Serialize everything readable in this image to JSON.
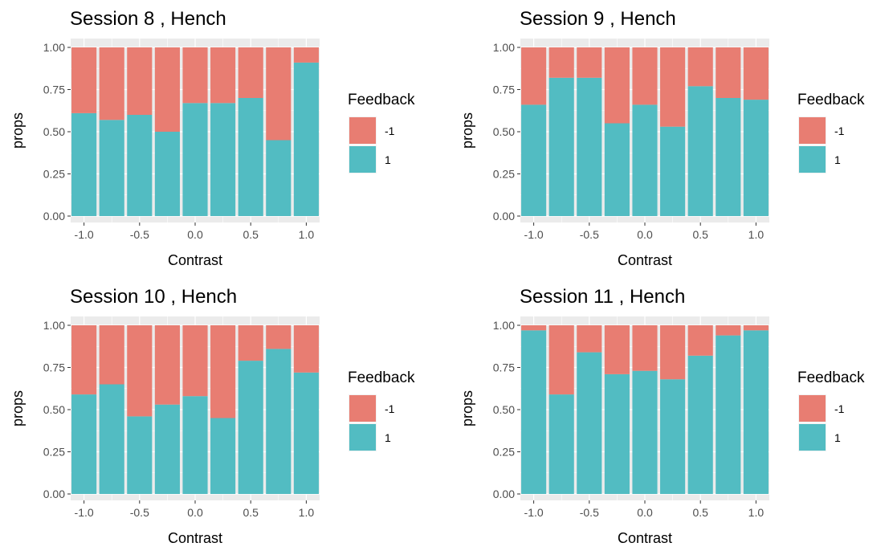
{
  "chart_data": [
    {
      "type": "bar",
      "stacked": true,
      "title": "Session  8 , Hench",
      "xlabel": "Contrast",
      "ylabel": "props",
      "ylim": [
        0,
        1
      ],
      "xlim": [
        -1.12,
        1.12
      ],
      "x": [
        -1.0,
        -0.75,
        -0.5,
        -0.25,
        0.0,
        0.25,
        0.5,
        0.75,
        1.0
      ],
      "xticks": [
        "-1.0",
        "-0.5",
        "0.0",
        "0.5",
        "1.0"
      ],
      "yticks": [
        "0.00",
        "0.25",
        "0.50",
        "0.75",
        "1.00"
      ],
      "legend": {
        "title": "Feedback",
        "position": "right",
        "entries": [
          "-1",
          "1"
        ]
      },
      "series": [
        {
          "name": "1",
          "color": "#52BCC2",
          "values": [
            0.61,
            0.57,
            0.6,
            0.5,
            0.67,
            0.67,
            0.7,
            0.45,
            0.91
          ]
        },
        {
          "name": "-1",
          "color": "#E87D72",
          "values": [
            0.39,
            0.43,
            0.4,
            0.5,
            0.33,
            0.33,
            0.3,
            0.55,
            0.09
          ]
        }
      ]
    },
    {
      "type": "bar",
      "stacked": true,
      "title": "Session  9 , Hench",
      "xlabel": "Contrast",
      "ylabel": "props",
      "ylim": [
        0,
        1
      ],
      "xlim": [
        -1.12,
        1.12
      ],
      "x": [
        -1.0,
        -0.75,
        -0.5,
        -0.25,
        0.0,
        0.25,
        0.5,
        0.75,
        1.0
      ],
      "xticks": [
        "-1.0",
        "-0.5",
        "0.0",
        "0.5",
        "1.0"
      ],
      "yticks": [
        "0.00",
        "0.25",
        "0.50",
        "0.75",
        "1.00"
      ],
      "legend": {
        "title": "Feedback",
        "position": "right",
        "entries": [
          "-1",
          "1"
        ]
      },
      "series": [
        {
          "name": "1",
          "color": "#52BCC2",
          "values": [
            0.66,
            0.82,
            0.82,
            0.55,
            0.66,
            0.53,
            0.77,
            0.7,
            0.69
          ]
        },
        {
          "name": "-1",
          "color": "#E87D72",
          "values": [
            0.34,
            0.18,
            0.18,
            0.45,
            0.34,
            0.47,
            0.23,
            0.3,
            0.31
          ]
        }
      ]
    },
    {
      "type": "bar",
      "stacked": true,
      "title": "Session  10 , Hench",
      "xlabel": "Contrast",
      "ylabel": "props",
      "ylim": [
        0,
        1
      ],
      "xlim": [
        -1.12,
        1.12
      ],
      "x": [
        -1.0,
        -0.75,
        -0.5,
        -0.25,
        0.0,
        0.25,
        0.5,
        0.75,
        1.0
      ],
      "xticks": [
        "-1.0",
        "-0.5",
        "0.0",
        "0.5",
        "1.0"
      ],
      "yticks": [
        "0.00",
        "0.25",
        "0.50",
        "0.75",
        "1.00"
      ],
      "legend": {
        "title": "Feedback",
        "position": "right",
        "entries": [
          "-1",
          "1"
        ]
      },
      "series": [
        {
          "name": "1",
          "color": "#52BCC2",
          "values": [
            0.59,
            0.65,
            0.46,
            0.53,
            0.58,
            0.45,
            0.79,
            0.86,
            0.72
          ]
        },
        {
          "name": "-1",
          "color": "#E87D72",
          "values": [
            0.41,
            0.35,
            0.54,
            0.47,
            0.42,
            0.55,
            0.21,
            0.14,
            0.28
          ]
        }
      ]
    },
    {
      "type": "bar",
      "stacked": true,
      "title": "Session  11 , Hench",
      "xlabel": "Contrast",
      "ylabel": "props",
      "ylim": [
        0,
        1
      ],
      "xlim": [
        -1.12,
        1.12
      ],
      "x": [
        -1.0,
        -0.75,
        -0.5,
        -0.25,
        0.0,
        0.25,
        0.5,
        0.75,
        1.0
      ],
      "xticks": [
        "-1.0",
        "-0.5",
        "0.0",
        "0.5",
        "1.0"
      ],
      "yticks": [
        "0.00",
        "0.25",
        "0.50",
        "0.75",
        "1.00"
      ],
      "legend": {
        "title": "Feedback",
        "position": "right",
        "entries": [
          "-1",
          "1"
        ]
      },
      "series": [
        {
          "name": "1",
          "color": "#52BCC2",
          "values": [
            0.97,
            0.59,
            0.84,
            0.71,
            0.73,
            0.68,
            0.82,
            0.94,
            0.97
          ]
        },
        {
          "name": "-1",
          "color": "#E87D72",
          "values": [
            0.03,
            0.41,
            0.16,
            0.29,
            0.27,
            0.32,
            0.18,
            0.06,
            0.03
          ]
        }
      ]
    }
  ],
  "colors": {
    "panel_background": "#EBEBEB",
    "gridline": "#FFFFFF",
    "axis_text": "#4D4D4D",
    "text": "#000000"
  }
}
